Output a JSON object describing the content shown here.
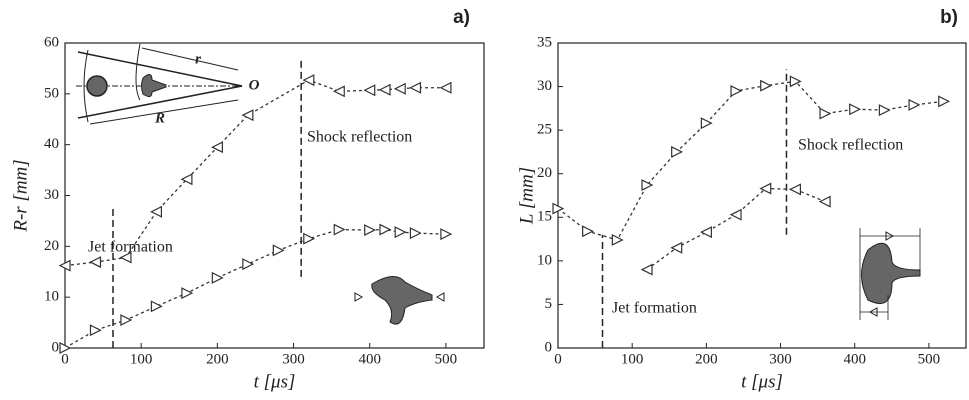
{
  "chart_data": [
    {
      "type": "line",
      "panel_label": "a)",
      "y_label": "R-r [mm]",
      "x_label": "t [μs]",
      "xlim": [
        0,
        550
      ],
      "xticks": [
        0,
        100,
        200,
        300,
        400,
        500
      ],
      "ylim": [
        0,
        60
      ],
      "yticks": [
        0,
        10,
        20,
        30,
        40,
        50,
        60
      ],
      "series": [
        {
          "marker": "triangle-left",
          "color": "#333333",
          "x": [
            0,
            40,
            80,
            120,
            160,
            200,
            240,
            320,
            360,
            400,
            420,
            440,
            460,
            500
          ],
          "values": [
            16.2,
            16.9,
            17.8,
            26.8,
            33.2,
            39.5,
            45.8,
            52.7,
            50.5,
            50.7,
            50.8,
            51,
            51.2,
            51.2
          ]
        },
        {
          "marker": "triangle-right",
          "color": "#333333",
          "x": [
            0,
            40,
            80,
            120,
            160,
            200,
            240,
            280,
            320,
            360,
            400,
            420,
            440,
            460,
            500
          ],
          "values": [
            0,
            3.5,
            5.5,
            8.2,
            10.8,
            13.8,
            16.5,
            19.2,
            21.5,
            23.3,
            23.2,
            23.3,
            22.8,
            22.6,
            22.4
          ]
        }
      ],
      "vlines": [
        {
          "x": 63,
          "from": 0,
          "to": 28
        },
        {
          "x": 310,
          "from": 14,
          "to": 57
        }
      ],
      "annotations": [
        "Jet formation",
        "Shock reflection"
      ],
      "inset_labels": [
        "r",
        "R",
        "O"
      ]
    },
    {
      "type": "line",
      "panel_label": "b)",
      "y_label": "L [mm]",
      "x_label": "t [μs]",
      "xlim": [
        0,
        550
      ],
      "xticks": [
        0,
        100,
        200,
        300,
        400,
        500
      ],
      "ylim": [
        0,
        35
      ],
      "yticks": [
        0,
        5,
        10,
        15,
        20,
        25,
        30,
        35
      ],
      "series": [
        {
          "marker": "triangle-right",
          "color": "#333333",
          "x": [
            0,
            40,
            80,
            120,
            160,
            200,
            240,
            280,
            320,
            360,
            400,
            440,
            480,
            520
          ],
          "values": [
            16,
            13.4,
            12.4,
            18.7,
            22.5,
            25.8,
            29.5,
            30.1,
            30.6,
            26.9,
            27.4,
            27.3,
            27.9,
            28.3
          ]
        },
        {
          "marker": "triangle-left",
          "color": "#333333",
          "x": [
            120,
            160,
            200,
            240,
            280,
            320,
            360
          ],
          "values": [
            9,
            11.5,
            13.3,
            15.3,
            18.3,
            18.2,
            16.8
          ]
        }
      ],
      "vlines": [
        {
          "x": 60,
          "from": 0,
          "to": 13
        },
        {
          "x": 308,
          "from": 13,
          "to": 32
        }
      ],
      "annotations": [
        "Jet formation",
        "Shock reflection"
      ]
    }
  ]
}
